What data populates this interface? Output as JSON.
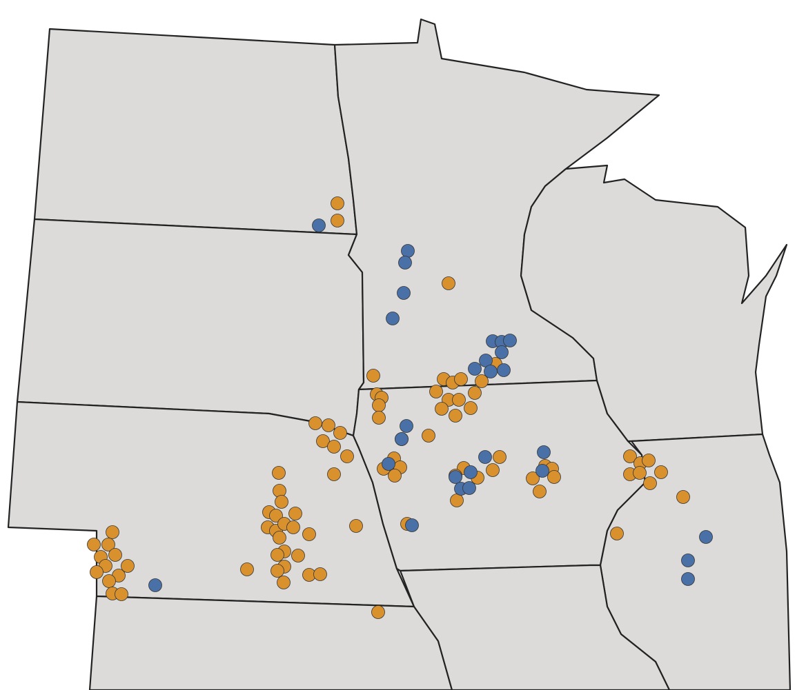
{
  "map": {
    "land_color": "#dcdbd9",
    "border_color": "#222222",
    "marker_colors": [
      "#d9912e",
      "#4a70a8"
    ]
  }
}
